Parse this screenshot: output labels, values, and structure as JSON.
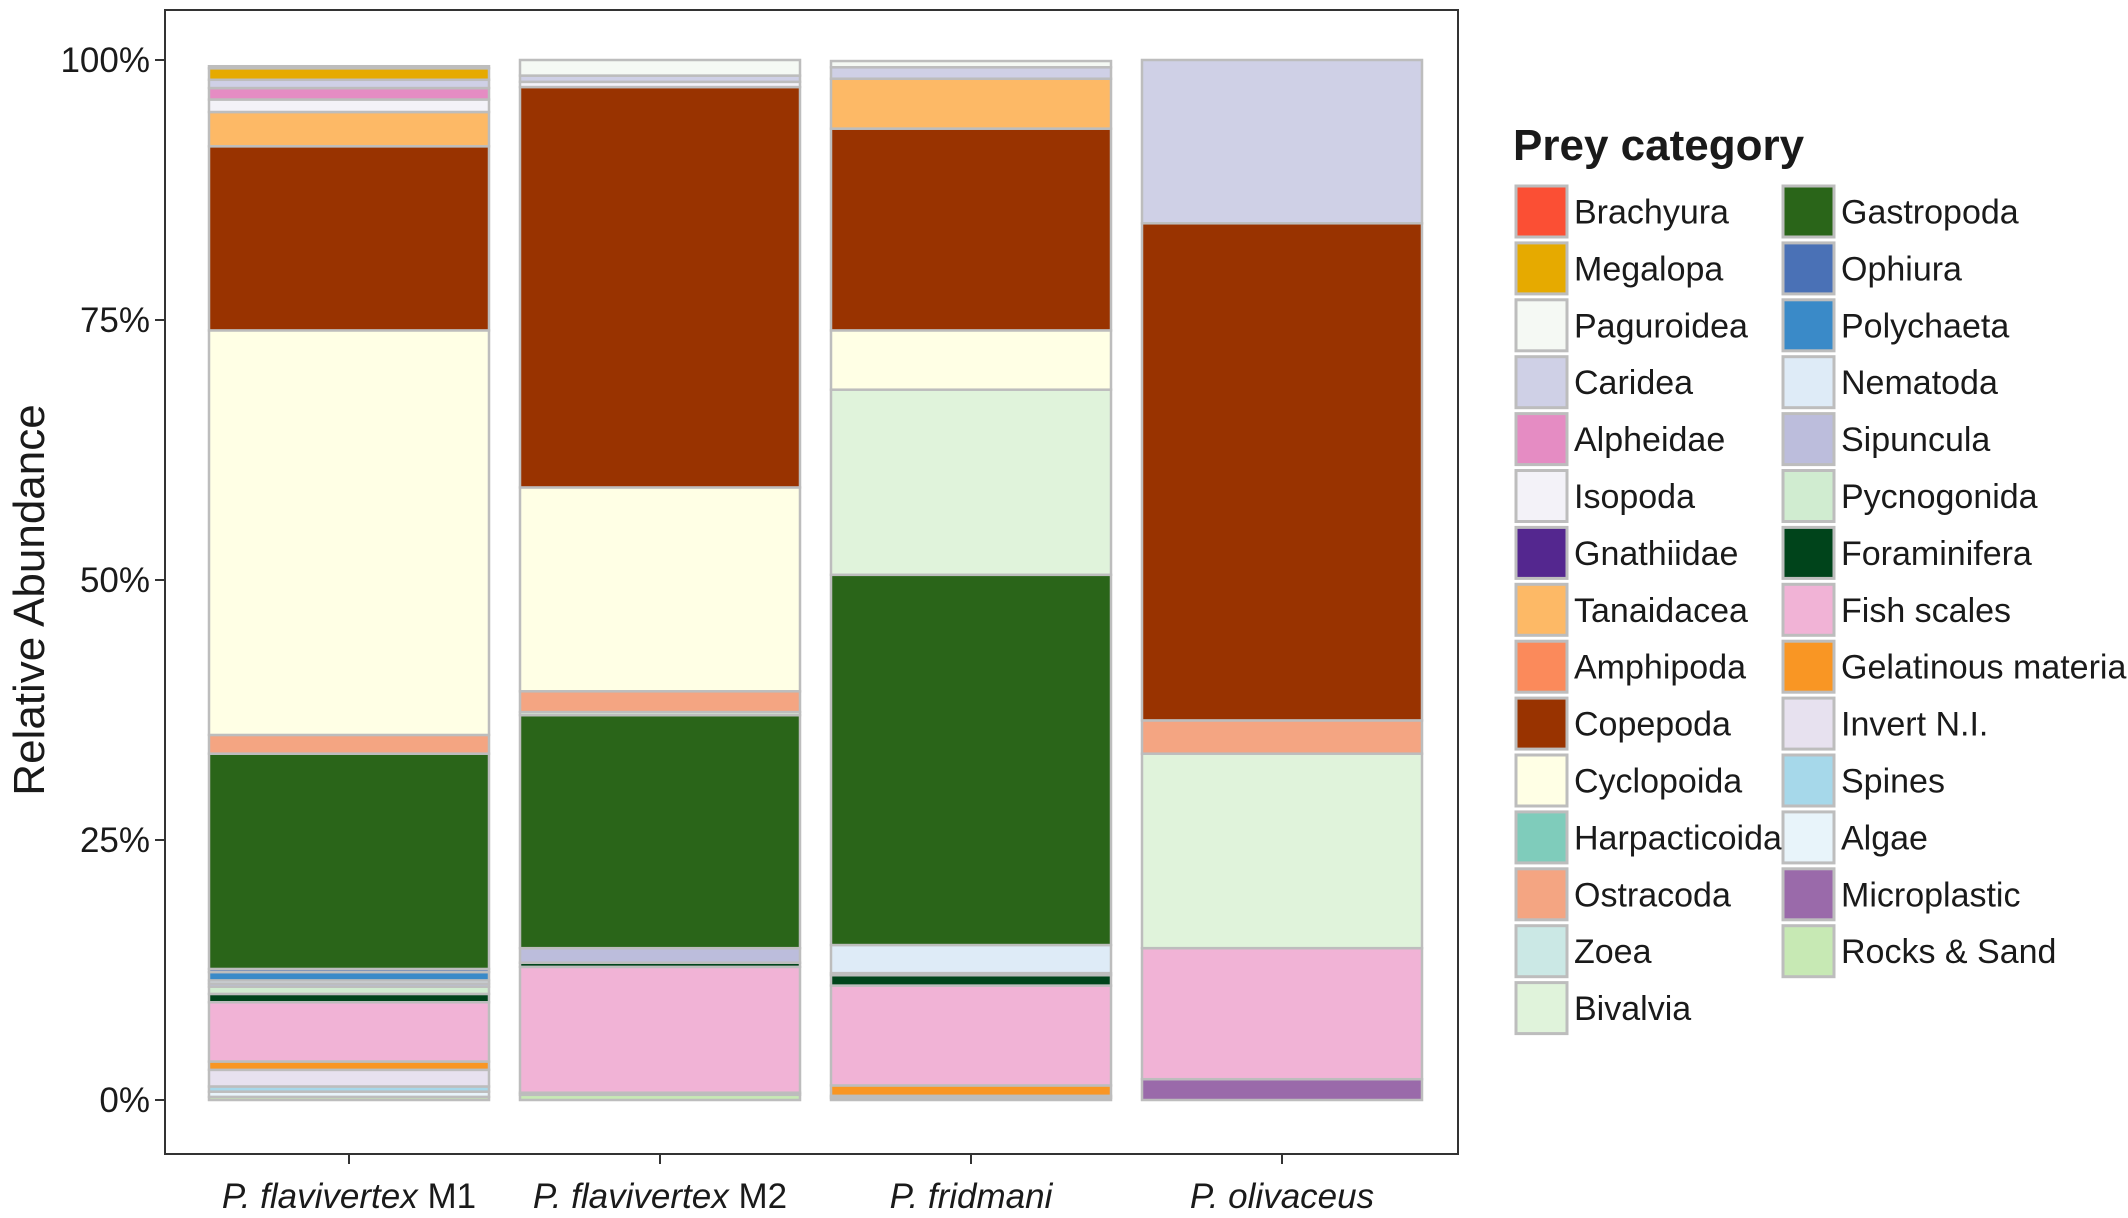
{
  "chart_data": {
    "type": "bar",
    "stacked": true,
    "percent": true,
    "ylabel": "Relative Abundance",
    "ylim": [
      0,
      100
    ],
    "yticks": [
      "0%",
      "25%",
      "50%",
      "75%",
      "100%"
    ],
    "grid": false,
    "legend_position": "right",
    "legend_title": "Prey category",
    "categories": [
      {
        "species": "P. flavivertex",
        "suffix": " M1"
      },
      {
        "species": "P. flavivertex",
        "suffix": " M2"
      },
      {
        "species": "P. fridmani",
        "suffix": ""
      },
      {
        "species": "P. olivaceus",
        "suffix": ""
      }
    ],
    "legend": [
      {
        "name": "Brachyura",
        "color": "#fb4f34"
      },
      {
        "name": "Megalopa",
        "color": "#e6aa00"
      },
      {
        "name": "Paguroidea",
        "color": "#f5f9f4"
      },
      {
        "name": "Caridea",
        "color": "#cfd0e6"
      },
      {
        "name": "Alpheidae",
        "color": "#e58cc3"
      },
      {
        "name": "Isopoda",
        "color": "#f3f2f8"
      },
      {
        "name": "Gnathiidae",
        "color": "#54278f"
      },
      {
        "name": "Tanaidacea",
        "color": "#fdb966"
      },
      {
        "name": "Amphipoda",
        "color": "#fb8a5b"
      },
      {
        "name": "Copepoda",
        "color": "#993300"
      },
      {
        "name": "Cyclopoida",
        "color": "#ffffe5"
      },
      {
        "name": "Harpacticoida",
        "color": "#7fccbb"
      },
      {
        "name": "Ostracoda",
        "color": "#f4a582"
      },
      {
        "name": "Zoea",
        "color": "#cbe8e5"
      },
      {
        "name": "Bivalvia",
        "color": "#e0f3db"
      },
      {
        "name": "Gastropoda",
        "color": "#2a6519"
      },
      {
        "name": "Ophiura",
        "color": "#4a71b6"
      },
      {
        "name": "Polychaeta",
        "color": "#3a8ac8"
      },
      {
        "name": "Nematoda",
        "color": "#deebf7"
      },
      {
        "name": "Sipuncula",
        "color": "#bcbddc"
      },
      {
        "name": "Pycnogonida",
        "color": "#d0ecd0"
      },
      {
        "name": "Foraminifera",
        "color": "#00441b"
      },
      {
        "name": "Fish scales",
        "color": "#f1b3d6"
      },
      {
        "name": "Gelatinous material",
        "color": "#f99624"
      },
      {
        "name": "Invert N.I.",
        "color": "#e7e1ef"
      },
      {
        "name": "Spines",
        "color": "#a6d8ea"
      },
      {
        "name": "Algae",
        "color": "#e8f4fa"
      },
      {
        "name": "Microplastic",
        "color": "#9a6aaa"
      },
      {
        "name": "Rocks & Sand",
        "color": "#c7e9b4"
      }
    ],
    "series": [
      {
        "name": "Rocks & Sand",
        "values": [
          0.3,
          0.5,
          0.2,
          0
        ]
      },
      {
        "name": "Microplastic",
        "values": [
          0,
          0,
          0,
          2.0
        ]
      },
      {
        "name": "Algae",
        "values": [
          0.5,
          0.2,
          0,
          0
        ]
      },
      {
        "name": "Spines",
        "values": [
          0.5,
          0,
          0,
          0
        ]
      },
      {
        "name": "Invert N.I.",
        "values": [
          1.6,
          0,
          0.2,
          0
        ]
      },
      {
        "name": "Gelatinous material",
        "values": [
          0.8,
          0,
          1.0,
          0
        ]
      },
      {
        "name": "Fish scales",
        "values": [
          5.7,
          12.1,
          9.6,
          12.6
        ]
      },
      {
        "name": "Foraminifera",
        "values": [
          0.8,
          0.4,
          1.0,
          0
        ]
      },
      {
        "name": "Pycnogonida",
        "values": [
          0.7,
          0,
          0,
          0
        ]
      },
      {
        "name": "Sipuncula",
        "values": [
          0.3,
          1.4,
          0.2,
          0
        ]
      },
      {
        "name": "Nematoda",
        "values": [
          0.3,
          0,
          2.7,
          0
        ]
      },
      {
        "name": "Polychaeta",
        "values": [
          0.8,
          0,
          0,
          0
        ]
      },
      {
        "name": "Ophiura",
        "values": [
          0.3,
          0,
          0,
          0
        ]
      },
      {
        "name": "Gastropoda",
        "values": [
          20.7,
          22.4,
          35.6,
          0
        ]
      },
      {
        "name": "Bivalvia",
        "values": [
          0,
          0.3,
          17.8,
          18.7
        ]
      },
      {
        "name": "Ostracoda",
        "values": [
          1.8,
          2.0,
          0,
          3.2
        ]
      },
      {
        "name": "Cyclopoida",
        "values": [
          38.9,
          19.6,
          5.7,
          0
        ]
      },
      {
        "name": "Copepoda",
        "values": [
          17.7,
          38.5,
          19.4,
          47.8
        ]
      },
      {
        "name": "Tanaidacea",
        "values": [
          3.3,
          0,
          4.8,
          0
        ]
      },
      {
        "name": "Isopoda",
        "values": [
          1.2,
          0.5,
          0,
          0
        ]
      },
      {
        "name": "Alpheidae",
        "values": [
          1.1,
          0,
          0,
          0
        ]
      },
      {
        "name": "Caridea",
        "values": [
          0.8,
          0.6,
          1.1,
          15.7
        ]
      },
      {
        "name": "Megalopa",
        "values": [
          1.1,
          0,
          0,
          0
        ]
      },
      {
        "name": "Paguroidea",
        "values": [
          0.2,
          1.5,
          0.6,
          0
        ]
      }
    ]
  }
}
